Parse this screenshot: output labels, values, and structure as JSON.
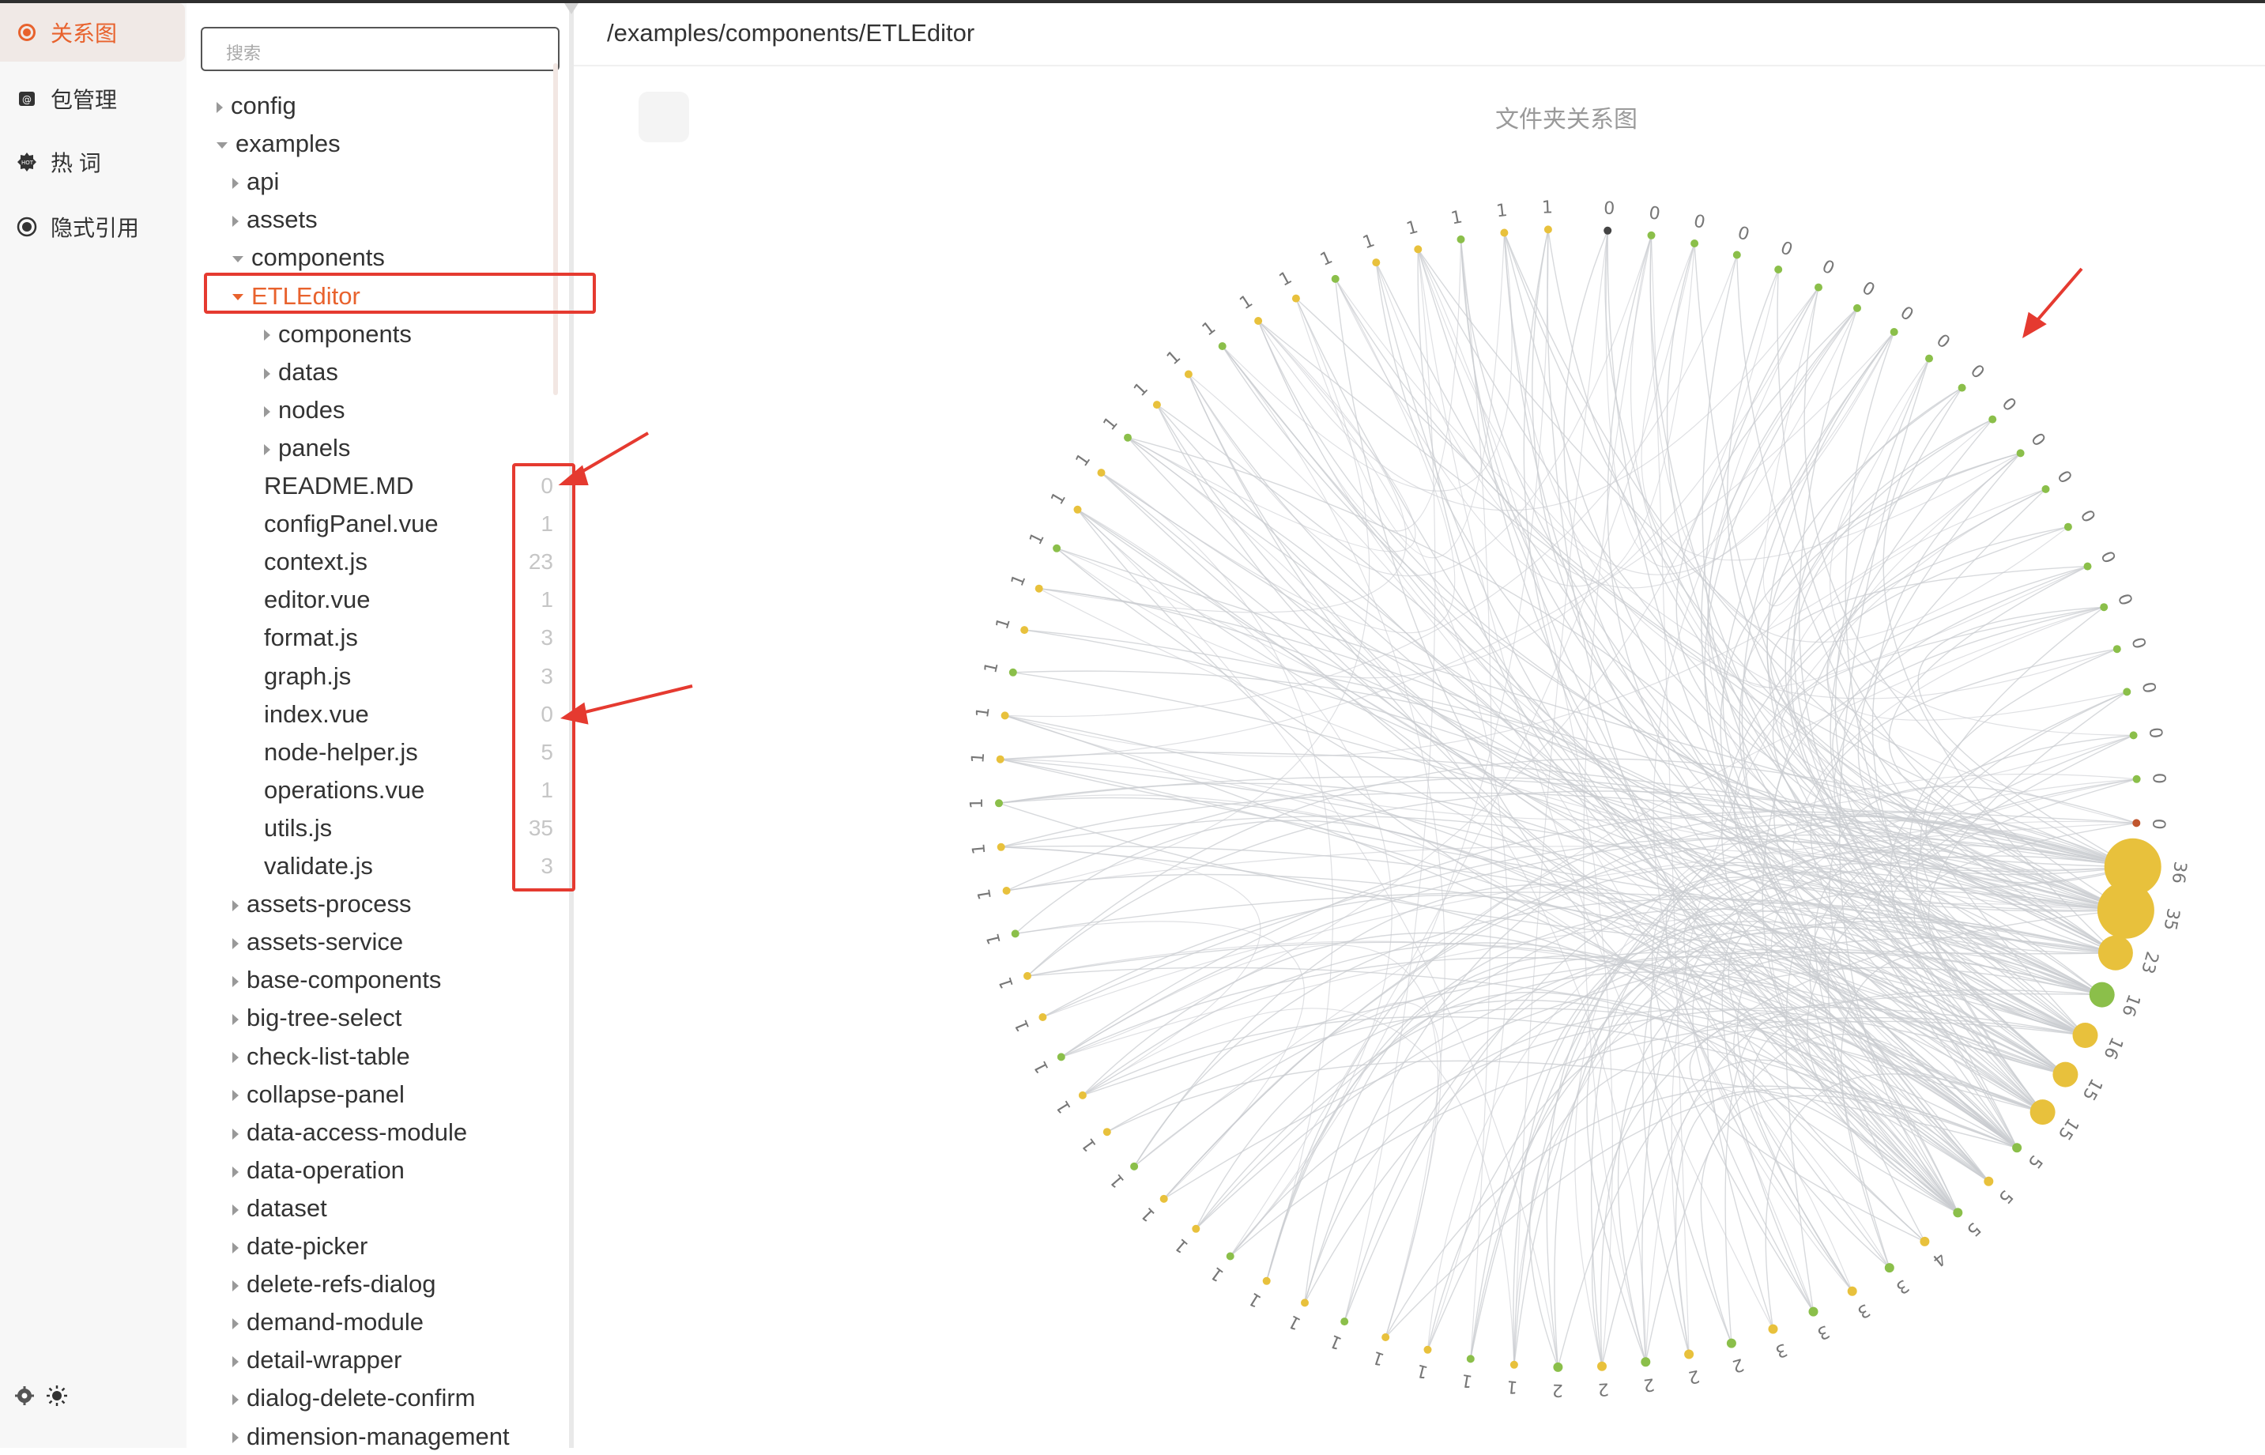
{
  "nav": {
    "items": [
      {
        "label": "关系图",
        "icon": "relation-graph-icon"
      },
      {
        "label": "包管理",
        "icon": "package-icon"
      },
      {
        "label": "热 词",
        "icon": "hot-word-icon"
      },
      {
        "label": "隐式引用",
        "icon": "implicit-reference-icon"
      }
    ],
    "active": 0
  },
  "search": {
    "placeholder": "搜索"
  },
  "tree": {
    "rows": [
      {
        "label": "config",
        "depth": 0,
        "state": "collapsed"
      },
      {
        "label": "examples",
        "depth": 0,
        "state": "expanded"
      },
      {
        "label": "api",
        "depth": 1,
        "state": "collapsed"
      },
      {
        "label": "assets",
        "depth": 1,
        "state": "collapsed"
      },
      {
        "label": "components",
        "depth": 1,
        "state": "expanded"
      },
      {
        "label": "ETLEditor",
        "depth": 2,
        "state": "expanded",
        "selected": true
      },
      {
        "label": "components",
        "depth": 3,
        "state": "collapsed"
      },
      {
        "label": "datas",
        "depth": 3,
        "state": "collapsed"
      },
      {
        "label": "nodes",
        "depth": 3,
        "state": "collapsed"
      },
      {
        "label": "panels",
        "depth": 3,
        "state": "collapsed"
      },
      {
        "label": "README.MD",
        "depth": 3,
        "state": "file",
        "count": "0"
      },
      {
        "label": "configPanel.vue",
        "depth": 3,
        "state": "file",
        "count": "1"
      },
      {
        "label": "context.js",
        "depth": 3,
        "state": "file",
        "count": "23"
      },
      {
        "label": "editor.vue",
        "depth": 3,
        "state": "file",
        "count": "1"
      },
      {
        "label": "format.js",
        "depth": 3,
        "state": "file",
        "count": "3"
      },
      {
        "label": "graph.js",
        "depth": 3,
        "state": "file",
        "count": "3"
      },
      {
        "label": "index.vue",
        "depth": 3,
        "state": "file",
        "count": "0"
      },
      {
        "label": "node-helper.js",
        "depth": 3,
        "state": "file",
        "count": "5"
      },
      {
        "label": "operations.vue",
        "depth": 3,
        "state": "file",
        "count": "1"
      },
      {
        "label": "utils.js",
        "depth": 3,
        "state": "file",
        "count": "35"
      },
      {
        "label": "validate.js",
        "depth": 3,
        "state": "file",
        "count": "3"
      },
      {
        "label": "assets-process",
        "depth": 2,
        "state": "collapsed"
      },
      {
        "label": "assets-service",
        "depth": 2,
        "state": "collapsed"
      },
      {
        "label": "base-components",
        "depth": 2,
        "state": "collapsed"
      },
      {
        "label": "big-tree-select",
        "depth": 2,
        "state": "collapsed"
      },
      {
        "label": "check-list-table",
        "depth": 2,
        "state": "collapsed"
      },
      {
        "label": "collapse-panel",
        "depth": 2,
        "state": "collapsed"
      },
      {
        "label": "data-access-module",
        "depth": 2,
        "state": "collapsed"
      },
      {
        "label": "data-operation",
        "depth": 2,
        "state": "collapsed"
      },
      {
        "label": "dataset",
        "depth": 2,
        "state": "collapsed"
      },
      {
        "label": "date-picker",
        "depth": 2,
        "state": "collapsed"
      },
      {
        "label": "delete-refs-dialog",
        "depth": 2,
        "state": "collapsed"
      },
      {
        "label": "demand-module",
        "depth": 2,
        "state": "collapsed"
      },
      {
        "label": "detail-wrapper",
        "depth": 2,
        "state": "collapsed"
      },
      {
        "label": "dialog-delete-confirm",
        "depth": 2,
        "state": "collapsed"
      },
      {
        "label": "dimension-management",
        "depth": 2,
        "state": "collapsed"
      }
    ]
  },
  "main": {
    "breadcrumb": "/examples/components/ETLEditor",
    "graph_title": "文件夹关系图"
  },
  "graph": {
    "node_labels": [
      "0",
      "0",
      "0",
      "0",
      "0",
      "0",
      "0",
      "0",
      "0",
      "0",
      "0",
      "0",
      "0",
      "0",
      "0",
      "0",
      "0",
      "0",
      "0",
      "0",
      "0",
      "36",
      "35",
      "23",
      "16",
      "16",
      "15",
      "15",
      "5",
      "5",
      "5",
      "4",
      "3",
      "3",
      "3",
      "3",
      "2",
      "2",
      "2",
      "2",
      "2",
      "1",
      "1",
      "1",
      "1",
      "1",
      "1",
      "1",
      "1",
      "1",
      "1",
      "1",
      "1",
      "1",
      "1",
      "1",
      "1",
      "1",
      "1",
      "1",
      "1",
      "1",
      "1",
      "1",
      "1",
      "1",
      "1",
      "1",
      "1",
      "1",
      "1",
      "1",
      "1",
      "1",
      "1",
      "1",
      "1",
      "1",
      "1",
      "1",
      "1"
    ],
    "colors": {
      "yellow": "#e8c13c",
      "green": "#8bbf4a",
      "dark": "#444444",
      "red": "#c0552d",
      "edge": "#c9ccd0",
      "accent": "#e8622d",
      "annotation": "#e53a30"
    }
  }
}
